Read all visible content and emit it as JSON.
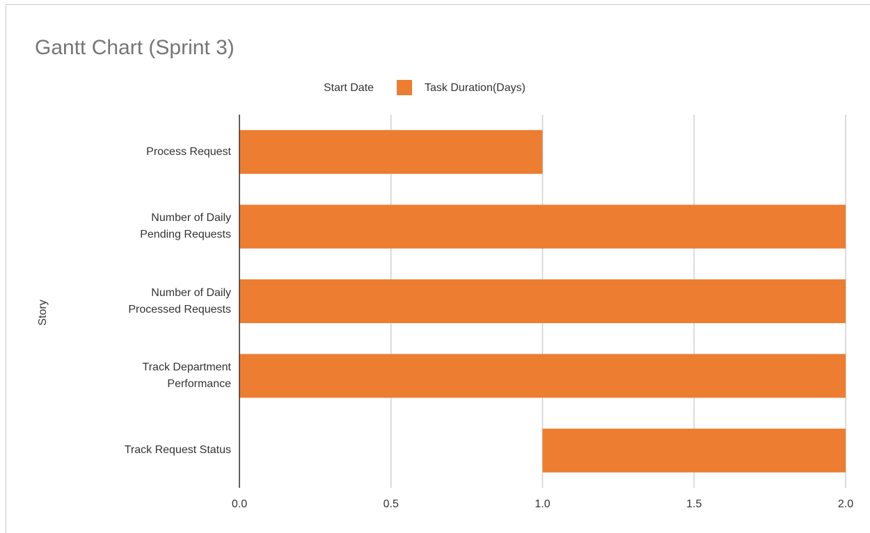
{
  "chart_data": {
    "type": "stacked_barh",
    "title": "Gantt Chart (Sprint 3)",
    "y_label": "Story",
    "categories": [
      "Process Request",
      "Number of Daily Pending Requests",
      "Number of Daily Processed Requests",
      "Track Department Performance",
      "Track Request Status"
    ],
    "series": [
      {
        "name": "Start Date",
        "color": "none",
        "values": [
          0,
          0,
          0,
          0,
          1
        ]
      },
      {
        "name": "Task Duration(Days)",
        "color": "#ed7d31",
        "values": [
          1,
          2,
          2,
          2,
          1
        ]
      }
    ],
    "xlim": [
      0,
      2
    ],
    "xticks": [
      {
        "value": 0,
        "label": "0.0"
      },
      0.5,
      {
        "value": 1,
        "label": "1.0"
      },
      1.5,
      {
        "value": 2,
        "label": "2.0"
      }
    ],
    "grid": true,
    "legend": "top"
  }
}
